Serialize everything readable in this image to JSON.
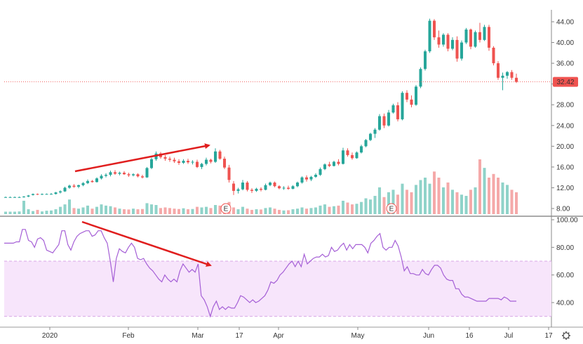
{
  "chart_data": [
    {
      "type": "candlestick",
      "panel": "price",
      "y_ticks": [
        "8.00",
        "12.00",
        "16.00",
        "20.00",
        "24.00",
        "28.00",
        "32.00",
        "36.00",
        "40.00",
        "44.00"
      ],
      "ylim": [
        6.0,
        46.6
      ],
      "last_price": 32.42,
      "last_price_label": "32.42",
      "x_ticks": [
        "2020",
        "Feb",
        "Mar",
        "17",
        "Apr",
        "May",
        "E",
        "Jun",
        "16",
        "Jul",
        "17"
      ],
      "event_marker_label": "E",
      "candles": [
        [
          10.2,
          10.3,
          10.1,
          10.2
        ],
        [
          10.2,
          10.3,
          10.1,
          10.2
        ],
        [
          10.2,
          10.3,
          10.1,
          10.2
        ],
        [
          10.2,
          10.3,
          10.1,
          10.2
        ],
        [
          10.2,
          10.4,
          10.1,
          10.3
        ],
        [
          10.3,
          10.6,
          10.2,
          10.5
        ],
        [
          10.6,
          10.9,
          10.5,
          10.8
        ],
        [
          10.8,
          10.9,
          10.6,
          10.7
        ],
        [
          10.7,
          10.9,
          10.6,
          10.8
        ],
        [
          10.8,
          10.9,
          10.7,
          10.8
        ],
        [
          10.8,
          11.0,
          10.7,
          10.8
        ],
        [
          10.8,
          11.2,
          10.7,
          11.1
        ],
        [
          11.1,
          11.5,
          10.9,
          11.3
        ],
        [
          11.3,
          12.2,
          11.2,
          12.0
        ],
        [
          12.0,
          12.6,
          11.8,
          12.4
        ],
        [
          12.4,
          12.7,
          12.0,
          12.2
        ],
        [
          12.2,
          12.6,
          11.9,
          12.5
        ],
        [
          12.5,
          13.1,
          12.3,
          12.9
        ],
        [
          12.9,
          13.6,
          12.7,
          13.3
        ],
        [
          13.3,
          13.5,
          13.0,
          13.1
        ],
        [
          13.1,
          14.0,
          13.0,
          13.8
        ],
        [
          13.8,
          14.6,
          13.6,
          14.3
        ],
        [
          14.3,
          14.8,
          14.0,
          14.5
        ],
        [
          14.5,
          15.3,
          14.2,
          15.0
        ],
        [
          15.0,
          15.4,
          14.5,
          14.7
        ],
        [
          14.7,
          15.1,
          14.4,
          14.9
        ],
        [
          14.9,
          15.2,
          14.5,
          14.6
        ],
        [
          14.6,
          14.9,
          14.1,
          14.4
        ],
        [
          14.4,
          14.8,
          14.2,
          14.6
        ],
        [
          14.6,
          14.8,
          14.0,
          14.2
        ],
        [
          14.2,
          14.5,
          13.8,
          14.0
        ],
        [
          14.0,
          16.0,
          13.9,
          15.8
        ],
        [
          15.8,
          17.8,
          15.6,
          17.5
        ],
        [
          17.5,
          19.0,
          17.2,
          18.6
        ],
        [
          18.6,
          18.9,
          17.6,
          17.9
        ],
        [
          17.9,
          18.3,
          17.2,
          17.6
        ],
        [
          17.6,
          18.0,
          17.0,
          17.4
        ],
        [
          17.4,
          17.8,
          16.8,
          17.1
        ],
        [
          17.1,
          17.5,
          16.4,
          16.8
        ],
        [
          16.8,
          17.5,
          16.6,
          17.2
        ],
        [
          17.2,
          17.6,
          16.6,
          16.9
        ],
        [
          16.9,
          17.3,
          16.5,
          17.0
        ],
        [
          17.0,
          17.4,
          15.8,
          16.0
        ],
        [
          16.0,
          16.8,
          15.6,
          16.6
        ],
        [
          16.6,
          17.8,
          16.3,
          17.4
        ],
        [
          17.4,
          17.6,
          16.7,
          17.0
        ],
        [
          17.0,
          19.6,
          16.8,
          19.0
        ],
        [
          19.0,
          19.3,
          17.4,
          17.6
        ],
        [
          17.6,
          18.0,
          15.6,
          15.9
        ],
        [
          15.9,
          16.4,
          13.0,
          13.5
        ],
        [
          12.8,
          13.3,
          10.6,
          11.4
        ],
        [
          11.4,
          12.0,
          10.9,
          11.7
        ],
        [
          11.7,
          13.5,
          11.5,
          13.0
        ],
        [
          13.0,
          13.3,
          11.3,
          11.6
        ],
        [
          11.6,
          11.9,
          11.0,
          11.4
        ],
        [
          11.4,
          12.0,
          11.2,
          11.8
        ],
        [
          11.8,
          12.1,
          11.3,
          11.6
        ],
        [
          11.6,
          12.8,
          11.5,
          12.5
        ],
        [
          12.5,
          13.2,
          12.3,
          13.0
        ],
        [
          13.0,
          13.2,
          12.1,
          12.3
        ],
        [
          12.3,
          12.5,
          11.7,
          11.9
        ],
        [
          11.9,
          12.3,
          11.6,
          12.0
        ],
        [
          12.0,
          12.4,
          11.6,
          11.8
        ],
        [
          11.8,
          12.5,
          11.7,
          12.3
        ],
        [
          12.3,
          13.2,
          12.1,
          13.0
        ],
        [
          13.0,
          14.2,
          12.8,
          14.0
        ],
        [
          14.0,
          14.4,
          13.2,
          13.6
        ],
        [
          13.6,
          14.3,
          13.3,
          14.1
        ],
        [
          14.1,
          14.8,
          13.9,
          14.5
        ],
        [
          14.5,
          15.9,
          14.3,
          15.6
        ],
        [
          15.6,
          16.7,
          15.4,
          16.5
        ],
        [
          16.5,
          17.0,
          16.0,
          16.2
        ],
        [
          16.2,
          17.2,
          16.1,
          17.0
        ],
        [
          17.0,
          17.5,
          16.3,
          16.6
        ],
        [
          16.6,
          19.7,
          16.5,
          19.2
        ],
        [
          19.2,
          19.6,
          18.0,
          18.3
        ],
        [
          18.3,
          18.8,
          17.4,
          17.7
        ],
        [
          17.7,
          19.0,
          17.6,
          18.8
        ],
        [
          18.8,
          20.3,
          18.6,
          20.0
        ],
        [
          20.0,
          21.4,
          19.8,
          21.2
        ],
        [
          21.2,
          22.6,
          21.0,
          22.4
        ],
        [
          22.4,
          23.5,
          21.6,
          23.2
        ],
        [
          23.2,
          26.2,
          23.0,
          25.8
        ],
        [
          25.8,
          26.3,
          23.5,
          24.0
        ],
        [
          24.0,
          27.0,
          23.8,
          26.5
        ],
        [
          26.5,
          28.2,
          26.3,
          27.9
        ],
        [
          27.9,
          28.5,
          24.8,
          25.2
        ],
        [
          25.2,
          30.6,
          25.0,
          30.3
        ],
        [
          30.3,
          30.8,
          28.5,
          29.0
        ],
        [
          29.0,
          29.8,
          27.5,
          28.0
        ],
        [
          28.0,
          31.8,
          27.8,
          31.5
        ],
        [
          31.5,
          35.2,
          31.2,
          34.9
        ],
        [
          34.9,
          38.6,
          34.6,
          38.3
        ],
        [
          38.3,
          44.6,
          38.0,
          44.2
        ],
        [
          44.2,
          44.5,
          40.5,
          41.0
        ],
        [
          41.0,
          42.3,
          39.0,
          39.6
        ],
        [
          39.6,
          41.8,
          39.2,
          41.5
        ],
        [
          41.5,
          41.8,
          38.3,
          38.8
        ],
        [
          38.8,
          41.0,
          38.5,
          40.5
        ],
        [
          40.5,
          41.2,
          36.3,
          36.9
        ],
        [
          36.9,
          40.4,
          36.5,
          40.0
        ],
        [
          40.0,
          42.8,
          39.7,
          42.5
        ],
        [
          42.5,
          42.7,
          38.7,
          39.2
        ],
        [
          39.2,
          42.3,
          39.0,
          42.0
        ],
        [
          42.0,
          43.8,
          40.0,
          40.5
        ],
        [
          40.5,
          43.4,
          40.3,
          43.0
        ],
        [
          43.0,
          43.4,
          38.4,
          39.0
        ],
        [
          39.0,
          39.3,
          35.6,
          36.0
        ],
        [
          36.0,
          36.4,
          32.8,
          33.2
        ],
        [
          33.2,
          34.2,
          30.8,
          33.6
        ],
        [
          33.6,
          34.5,
          33.0,
          34.3
        ],
        [
          34.3,
          34.7,
          32.8,
          33.2
        ],
        [
          33.2,
          34.0,
          32.2,
          32.42
        ]
      ],
      "volumes": [
        20,
        20,
        20,
        22,
        110,
        40,
        25,
        35,
        22,
        28,
        30,
        40,
        60,
        80,
        120,
        50,
        45,
        55,
        70,
        45,
        60,
        80,
        70,
        65,
        55,
        45,
        40,
        38,
        45,
        40,
        42,
        90,
        80,
        75,
        50,
        55,
        50,
        45,
        42,
        48,
        40,
        42,
        60,
        55,
        60,
        50,
        75,
        70,
        85,
        100,
        55,
        40,
        60,
        45,
        35,
        40,
        38,
        50,
        55,
        45,
        35,
        30,
        32,
        40,
        45,
        55,
        45,
        50,
        55,
        70,
        80,
        60,
        65,
        70,
        110,
        95,
        80,
        85,
        100,
        130,
        120,
        150,
        220,
        140,
        180,
        200,
        160,
        250,
        200,
        180,
        240,
        280,
        300,
        250,
        350,
        300,
        220,
        260,
        200,
        180,
        160,
        150,
        200,
        220,
        450,
        380,
        300,
        330,
        300,
        260,
        240,
        200,
        180
      ],
      "volume_up_color": "#8fd3c9",
      "volume_down_color": "#f5a9a9",
      "up_color": "#26a69a",
      "down_color": "#ef5350"
    },
    {
      "type": "line",
      "panel": "rsi",
      "y_ticks": [
        "40.00",
        "60.00",
        "80.00",
        "100.00"
      ],
      "ylim": [
        28.5,
        101.5
      ],
      "band": [
        30,
        70
      ],
      "values": [
        83,
        83,
        83,
        83,
        84,
        84,
        93,
        93,
        85,
        84,
        80,
        86,
        87,
        85,
        78,
        77,
        76,
        79,
        82,
        92,
        92,
        82,
        78,
        84,
        88,
        90,
        91,
        92,
        92,
        88,
        89,
        92,
        92,
        87,
        83,
        70,
        55,
        72,
        79,
        77,
        76,
        80,
        83,
        80,
        72,
        71,
        72,
        68,
        65,
        63,
        60,
        57,
        55,
        60,
        57,
        55,
        57,
        55,
        63,
        68,
        65,
        62,
        64,
        62,
        68,
        45,
        42,
        37,
        30,
        37,
        41,
        35,
        37,
        35,
        37,
        36,
        36,
        40,
        45,
        44,
        42,
        40,
        42,
        40,
        41,
        43,
        45,
        49,
        55,
        54,
        56,
        60,
        62,
        65,
        68,
        70,
        66,
        70,
        66,
        75,
        68,
        70,
        72,
        73,
        73,
        75,
        73,
        74,
        80,
        77,
        78,
        81,
        83,
        78,
        82,
        79,
        82,
        82,
        82,
        80,
        76,
        83,
        85,
        88,
        90,
        80,
        78,
        80,
        80,
        85,
        81,
        73,
        63,
        66,
        61,
        61,
        60,
        60,
        64,
        61,
        60,
        64,
        67,
        67,
        65,
        60,
        57,
        56,
        56,
        50,
        50,
        46,
        44,
        44,
        43,
        42,
        41,
        41,
        41,
        41,
        43,
        43,
        43,
        43,
        42,
        44,
        43,
        41,
        41,
        41
      ],
      "line_color": "#a55fd6",
      "band_fill": "#f7e5fb"
    }
  ],
  "annotations": {
    "arrow_color": "#e01e1e"
  }
}
